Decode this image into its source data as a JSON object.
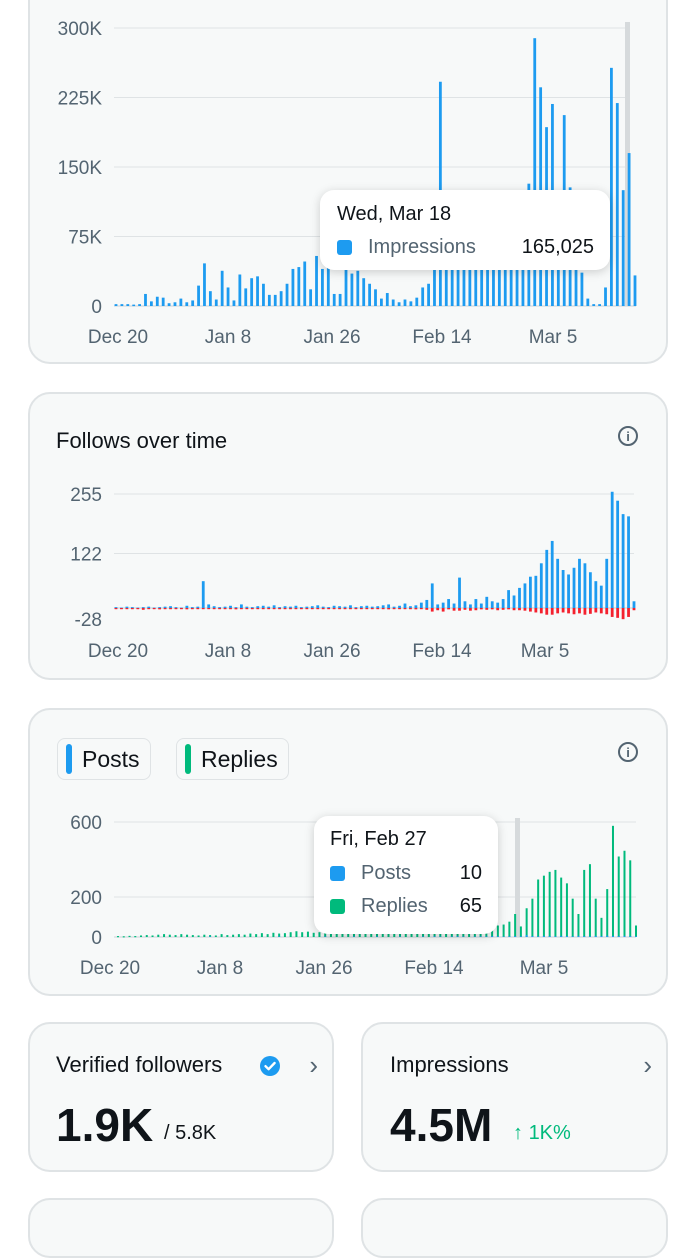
{
  "colors": {
    "blue": "#1d9bf0",
    "green": "#00ba7c",
    "red": "#f4212e",
    "axis_text": "#536471"
  },
  "x_tick_labels": [
    "Dec 20",
    "Jan 8",
    "Jan 26",
    "Feb 14",
    "Mar 5"
  ],
  "impressions_card": {
    "tooltip": {
      "date": "Wed, Mar 18",
      "label": "Impressions",
      "value": "165,025"
    }
  },
  "follows_card": {
    "title": "Follows over time",
    "info_icon": "info-icon"
  },
  "posts_card": {
    "legend": [
      {
        "label": "Posts",
        "color": "#1d9bf0"
      },
      {
        "label": "Replies",
        "color": "#00ba7c"
      }
    ],
    "info_icon": "info-icon",
    "tooltip": {
      "date": "Fri, Feb 27",
      "rows": [
        {
          "label": "Posts",
          "value": "10"
        },
        {
          "label": "Replies",
          "value": "65"
        }
      ]
    }
  },
  "verified_card": {
    "title": "Verified followers",
    "value": "1.9K",
    "total": "/ 5.8K",
    "icons": [
      "verified-badge-icon",
      "chevron-right-icon"
    ]
  },
  "impressions_summary": {
    "title": "Impressions",
    "value": "4.5M",
    "trend": "1K%",
    "icons": [
      "arrow-up-icon",
      "chevron-right-icon"
    ]
  },
  "chart_data": [
    {
      "type": "bar",
      "title": "",
      "x_ticks": [
        "Dec 20",
        "Jan 8",
        "Jan 26",
        "Feb 14",
        "Mar 5"
      ],
      "y_ticks": [
        "0",
        "75K",
        "150K",
        "225K",
        "300K"
      ],
      "ylim": [
        0,
        300000
      ],
      "series": [
        {
          "name": "Impressions",
          "color": "#1d9bf0",
          "values": [
            2000,
            2000,
            2000,
            1500,
            2000,
            13000,
            5000,
            10000,
            9000,
            3000,
            4000,
            8000,
            4000,
            6000,
            22000,
            46000,
            16000,
            7000,
            38000,
            20000,
            6000,
            34000,
            19000,
            30000,
            32000,
            24000,
            12000,
            12000,
            16000,
            24000,
            40000,
            42000,
            48000,
            18000,
            54000,
            40000,
            45000,
            13000,
            13000,
            40000,
            35000,
            38000,
            30000,
            24000,
            18000,
            8000,
            14000,
            7000,
            4000,
            7000,
            5000,
            9000,
            20000,
            24000,
            50000,
            242000,
            80000,
            100000,
            80000,
            90000,
            70000,
            60000,
            60000,
            70000,
            50000,
            100000,
            110000,
            90000,
            90000,
            80000,
            132000,
            289000,
            236000,
            193000,
            218000,
            92000,
            206000,
            128000,
            75000,
            36000,
            8000,
            2000,
            2000,
            20000,
            257000,
            219000,
            125000,
            165025,
            33000
          ]
        }
      ]
    },
    {
      "type": "bar",
      "title": "Follows over time",
      "x_ticks": [
        "Dec 20",
        "Jan 8",
        "Jan 26",
        "Feb 14",
        "Mar 5"
      ],
      "y_ticks": [
        "-28",
        "122",
        "255"
      ],
      "ylim": [
        -40,
        265
      ],
      "series": [
        {
          "name": "",
          "color": "#1d9bf0",
          "values": [
            2,
            1,
            3,
            2,
            1,
            2,
            3,
            1,
            2,
            3,
            4,
            2,
            1,
            5,
            2,
            3,
            60,
            8,
            4,
            2,
            3,
            5,
            2,
            8,
            3,
            2,
            4,
            5,
            3,
            6,
            2,
            4,
            3,
            5,
            2,
            3,
            4,
            6,
            3,
            2,
            5,
            4,
            3,
            6,
            2,
            4,
            5,
            3,
            4,
            6,
            8,
            3,
            5,
            10,
            4,
            6,
            12,
            18,
            55,
            8,
            12,
            20,
            10,
            68,
            15,
            8,
            20,
            10,
            25,
            15,
            12,
            20,
            40,
            28,
            45,
            55,
            70,
            72,
            100,
            130,
            150,
            110,
            85,
            75,
            90,
            110,
            100,
            80,
            60,
            50,
            110,
            260,
            240,
            210,
            205,
            15
          ]
        },
        {
          "name": "",
          "color": "#f4212e",
          "values": [
            -2,
            -1,
            -2,
            -1,
            -2,
            -4,
            -1,
            -2,
            -3,
            -1,
            -2,
            -2,
            -1,
            -3,
            -2,
            -1,
            -2,
            -1,
            -2,
            -1,
            -2,
            -1,
            -3,
            -1,
            -2,
            -1,
            -2,
            -1,
            -2,
            -1,
            -2,
            -1,
            -2,
            -1,
            -2,
            -1,
            -2,
            -1,
            -2,
            -1,
            -2,
            -1,
            -2,
            -1,
            -2,
            -1,
            -2,
            -1,
            -2,
            -1,
            -3,
            -2,
            -1,
            -2,
            -1,
            -3,
            -2,
            -4,
            -8,
            -5,
            -8,
            -3,
            -6,
            -6,
            -4,
            -6,
            -5,
            -3,
            -4,
            -3,
            -5,
            -4,
            -3,
            -5,
            -5,
            -6,
            -8,
            -10,
            -12,
            -15,
            -15,
            -12,
            -10,
            -12,
            -14,
            -12,
            -15,
            -13,
            -10,
            -12,
            -14,
            -20,
            -22,
            -25,
            -20,
            -5
          ]
        }
      ]
    },
    {
      "type": "bar",
      "title": "",
      "x_ticks": [
        "Dec 20",
        "Jan 8",
        "Jan 26",
        "Feb 14",
        "Mar 5"
      ],
      "y_ticks": [
        "0",
        "200",
        "600"
      ],
      "ylim": [
        0,
        600
      ],
      "series": [
        {
          "name": "Posts",
          "color": "#1d9bf0",
          "values": [
            1,
            0,
            1,
            0,
            1,
            2,
            0,
            1,
            0,
            1,
            2,
            1,
            0,
            1,
            2,
            1,
            3,
            1,
            0,
            2,
            1,
            1,
            2,
            1,
            0,
            2,
            1,
            2,
            3,
            1,
            2,
            1,
            0,
            2,
            1,
            2,
            3,
            1,
            2,
            1,
            2,
            3,
            2,
            1,
            2,
            3,
            2,
            1,
            2,
            3,
            2,
            1,
            2,
            3,
            2,
            4,
            3,
            2,
            3,
            4,
            3,
            2,
            3,
            4,
            3,
            5,
            4,
            3,
            4,
            5,
            4,
            10,
            5,
            4,
            6,
            5,
            4,
            6,
            5,
            4,
            6,
            5,
            4,
            6,
            5,
            7,
            6,
            5,
            6,
            5,
            4
          ]
        },
        {
          "name": "Replies",
          "color": "#00ba7c",
          "values": [
            5,
            4,
            6,
            5,
            8,
            10,
            8,
            12,
            15,
            12,
            10,
            15,
            12,
            10,
            8,
            12,
            10,
            8,
            15,
            10,
            12,
            15,
            12,
            18,
            15,
            20,
            15,
            22,
            18,
            20,
            25,
            30,
            25,
            28,
            22,
            25,
            30,
            40,
            55,
            35,
            30,
            28,
            25,
            30,
            32,
            28,
            35,
            30,
            25,
            30,
            28,
            35,
            40,
            35,
            30,
            40,
            38,
            35,
            40,
            45,
            48,
            50,
            45,
            55,
            50,
            65,
            60,
            65,
            80,
            120,
            55,
            150,
            200,
            300,
            320,
            340,
            350,
            310,
            280,
            200,
            120,
            350,
            380,
            200,
            100,
            250,
            580,
            420,
            450,
            400,
            60
          ]
        }
      ]
    }
  ]
}
